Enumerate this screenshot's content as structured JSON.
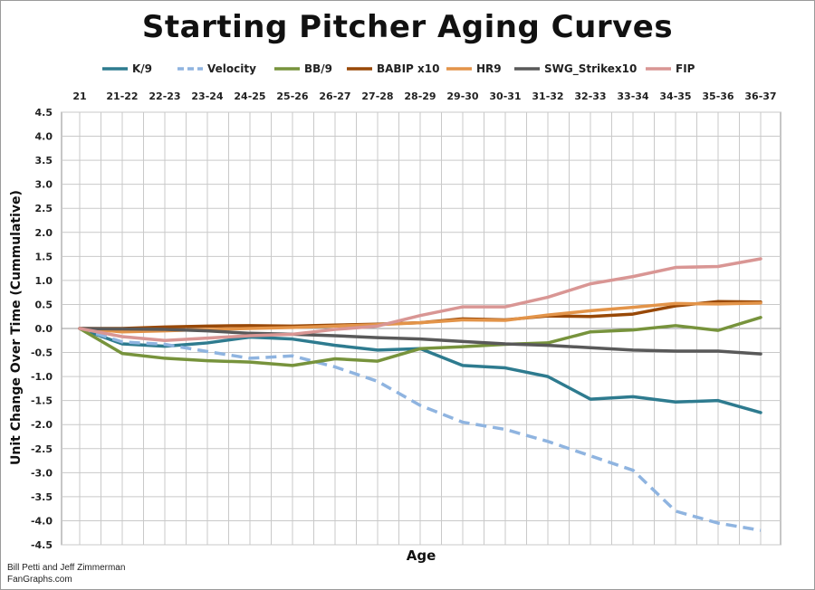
{
  "chart_data": {
    "type": "line",
    "title": "Starting Pitcher Aging Curves",
    "xlabel": "Age",
    "ylabel": "Unit Change Over Time (Cummulative)",
    "categories": [
      "21",
      "21-22",
      "22-23",
      "23-24",
      "24-25",
      "25-26",
      "26-27",
      "27-28",
      "28-29",
      "29-30",
      "30-31",
      "31-32",
      "32-33",
      "33-34",
      "34-35",
      "35-36",
      "36-37"
    ],
    "ylim": [
      -4.5,
      4.5
    ],
    "ytick_step": 0.5,
    "xaxis_position": "top",
    "grid": true,
    "legend_position": "top",
    "series": [
      {
        "name": "K/9",
        "color": "#2e7b8f",
        "dashed": false,
        "values": [
          0,
          -0.32,
          -0.37,
          -0.3,
          -0.18,
          -0.22,
          -0.35,
          -0.45,
          -0.42,
          -0.77,
          -0.82,
          -1.0,
          -1.47,
          -1.42,
          -1.53,
          -1.5,
          -1.75
        ]
      },
      {
        "name": "Velocity",
        "color": "#8fb4e0",
        "dashed": true,
        "values": [
          0,
          -0.28,
          -0.33,
          -0.48,
          -0.62,
          -0.57,
          -0.8,
          -1.1,
          -1.6,
          -1.95,
          -2.1,
          -2.35,
          -2.65,
          -2.95,
          -3.8,
          -4.05,
          -4.2
        ]
      },
      {
        "name": "BB/9",
        "color": "#77933c",
        "dashed": false,
        "values": [
          0,
          -0.52,
          -0.62,
          -0.67,
          -0.7,
          -0.77,
          -0.63,
          -0.68,
          -0.42,
          -0.38,
          -0.33,
          -0.3,
          -0.07,
          -0.03,
          0.06,
          -0.04,
          0.23
        ]
      },
      {
        "name": "BABIP x10",
        "color": "#984807",
        "dashed": false,
        "values": [
          0,
          0.0,
          0.03,
          0.05,
          0.06,
          0.05,
          0.07,
          0.09,
          0.12,
          0.2,
          0.18,
          0.26,
          0.25,
          0.3,
          0.47,
          0.56,
          0.55
        ]
      },
      {
        "name": "HR9",
        "color": "#e39449",
        "dashed": false,
        "values": [
          0,
          -0.07,
          -0.05,
          -0.02,
          0.0,
          0.02,
          0.05,
          0.08,
          0.12,
          0.18,
          0.17,
          0.28,
          0.37,
          0.44,
          0.52,
          0.51,
          0.53
        ]
      },
      {
        "name": "SWG_Strikex10",
        "color": "#595959",
        "dashed": false,
        "values": [
          0,
          -0.01,
          -0.02,
          -0.05,
          -0.1,
          -0.12,
          -0.15,
          -0.19,
          -0.22,
          -0.27,
          -0.32,
          -0.35,
          -0.4,
          -0.45,
          -0.47,
          -0.47,
          -0.53
        ]
      },
      {
        "name": "FIP",
        "color": "#d99694",
        "dashed": false,
        "values": [
          0,
          -0.17,
          -0.25,
          -0.2,
          -0.15,
          -0.12,
          -0.02,
          0.05,
          0.27,
          0.45,
          0.45,
          0.65,
          0.93,
          1.08,
          1.27,
          1.29,
          1.45
        ]
      }
    ]
  },
  "credits": {
    "line1": "Bill Petti and Jeff Zimmerman",
    "line2": "FanGraphs.com"
  }
}
